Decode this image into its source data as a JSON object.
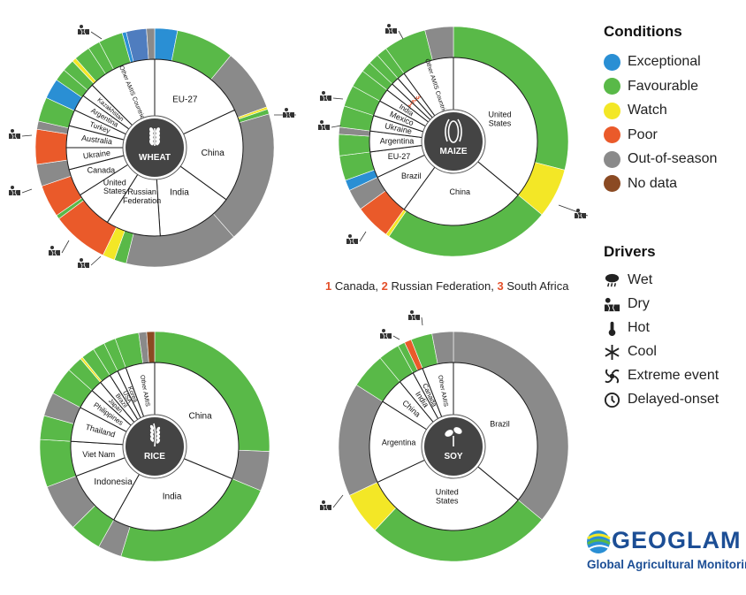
{
  "colors": {
    "Exceptional": "#2a8fd4",
    "Favourable": "#59b948",
    "Watch": "#f3e726",
    "Poor": "#ea5a2a",
    "Out-of-season": "#8a8a8a",
    "No data": "#8b4a23",
    "Mixed": "#4f7dbf"
  },
  "legend": {
    "conditions_title": "Conditions",
    "conditions": [
      {
        "label": "Exceptional",
        "color": "#2a8fd4"
      },
      {
        "label": "Favourable",
        "color": "#59b948"
      },
      {
        "label": "Watch",
        "color": "#f3e726"
      },
      {
        "label": "Poor",
        "color": "#ea5a2a"
      },
      {
        "label": "Out-of-season",
        "color": "#8a8a8a"
      },
      {
        "label": "No data",
        "color": "#8b4a23"
      }
    ],
    "drivers_title": "Drivers",
    "drivers": [
      {
        "label": "Wet",
        "icon": "wet-icon"
      },
      {
        "label": "Dry",
        "icon": "dry-icon"
      },
      {
        "label": "Hot",
        "icon": "hot-icon"
      },
      {
        "label": "Cool",
        "icon": "cool-icon"
      },
      {
        "label": "Extreme event",
        "icon": "extreme-event-icon"
      },
      {
        "label": "Delayed-onset",
        "icon": "delayed-onset-icon"
      }
    ]
  },
  "footnote": {
    "n1": "1",
    "t1": "Canada,",
    "n2": "2",
    "t2": "Russian Federation,",
    "n3": "3",
    "t3": "South Africa"
  },
  "logo": {
    "word": "GEOGLAM",
    "subtitle": "Global Agricultural Monitoring"
  },
  "chart_data": [
    {
      "type": "pie",
      "crop": "WHEAT",
      "inner": [
        {
          "label": "EU-27",
          "value": 18
        },
        {
          "label": "China",
          "value": 17
        },
        {
          "label": "India",
          "value": 14
        },
        {
          "label": "Russian Federation",
          "value": 10
        },
        {
          "label": "United States",
          "value": 7
        },
        {
          "label": "Canada",
          "value": 5
        },
        {
          "label": "Ukraine",
          "value": 4
        },
        {
          "label": "Australia",
          "value": 4
        },
        {
          "label": "Turkey",
          "value": 3
        },
        {
          "label": "Argentina",
          "value": 3
        },
        {
          "label": "Kazakhstan",
          "value": 2.5
        },
        {
          "label": "Other AMIS Countries",
          "value": 12.5
        }
      ],
      "outer": [
        {
          "value": 2.8,
          "condition": "Exceptional"
        },
        {
          "value": 7.2,
          "condition": "Favourable"
        },
        {
          "value": 7.7,
          "condition": "Out-of-season"
        },
        {
          "value": 0.3,
          "condition": "Watch"
        },
        {
          "value": 0.6,
          "condition": "Favourable"
        },
        {
          "value": 16.4,
          "condition": "Out-of-season"
        },
        {
          "value": 14,
          "condition": "Out-of-season"
        },
        {
          "value": 1.5,
          "condition": "Favourable"
        },
        {
          "value": 1.5,
          "condition": "Watch"
        },
        {
          "value": 7,
          "condition": "Poor"
        },
        {
          "value": 0.5,
          "condition": "Favourable"
        },
        {
          "value": 4,
          "condition": "Poor"
        },
        {
          "value": 2.7,
          "condition": "Out-of-season"
        },
        {
          "value": 4.3,
          "condition": "Poor"
        },
        {
          "value": 1,
          "condition": "Out-of-season"
        },
        {
          "value": 3,
          "condition": "Favourable"
        },
        {
          "value": 2.5,
          "condition": "Exceptional"
        },
        {
          "value": 1.5,
          "condition": "Favourable"
        },
        {
          "value": 1.5,
          "condition": "Favourable"
        },
        {
          "value": 0.5,
          "condition": "Watch"
        },
        {
          "value": 2,
          "condition": "Favourable"
        },
        {
          "value": 1.5,
          "condition": "Favourable"
        },
        {
          "value": 3,
          "condition": "Favourable"
        },
        {
          "value": 0.5,
          "condition": "Exceptional"
        },
        {
          "value": 2.5,
          "condition": "Mixed"
        },
        {
          "value": 1,
          "condition": "Out-of-season"
        }
      ]
    },
    {
      "type": "pie",
      "crop": "MAIZE",
      "inner": [
        {
          "label": "United States",
          "value": 36
        },
        {
          "label": "China",
          "value": 24
        },
        {
          "label": "Brazil",
          "value": 8
        },
        {
          "label": "EU-27",
          "value": 5
        },
        {
          "label": "Argentina",
          "value": 4
        },
        {
          "label": "Ukraine",
          "value": 3
        },
        {
          "label": "Mexico",
          "value": 3
        },
        {
          "label": "India",
          "value": 2.5
        },
        {
          "label": "1",
          "value": 1.5
        },
        {
          "label": "2",
          "value": 1.5
        },
        {
          "label": "3",
          "value": 1.5
        },
        {
          "label": "Other AMIS Countries",
          "value": 10
        }
      ],
      "outer": [
        {
          "value": 29,
          "condition": "Favourable"
        },
        {
          "value": 7,
          "condition": "Watch"
        },
        {
          "value": 23.5,
          "condition": "Favourable"
        },
        {
          "value": 0.5,
          "condition": "Watch"
        },
        {
          "value": 5,
          "condition": "Poor"
        },
        {
          "value": 3,
          "condition": "Out-of-season"
        },
        {
          "value": 1.5,
          "condition": "Exceptional"
        },
        {
          "value": 3.5,
          "condition": "Favourable"
        },
        {
          "value": 3,
          "condition": "Favourable"
        },
        {
          "value": 1,
          "condition": "Out-of-season"
        },
        {
          "value": 3,
          "condition": "Favourable"
        },
        {
          "value": 3,
          "condition": "Favourable"
        },
        {
          "value": 2.5,
          "condition": "Favourable"
        },
        {
          "value": 1.5,
          "condition": "Favourable"
        },
        {
          "value": 1.5,
          "condition": "Favourable"
        },
        {
          "value": 1.5,
          "condition": "Favourable"
        },
        {
          "value": 6,
          "condition": "Favourable"
        },
        {
          "value": 4,
          "condition": "Out-of-season"
        }
      ]
    },
    {
      "type": "pie",
      "crop": "RICE",
      "inner": [
        {
          "label": "China",
          "value": 28
        },
        {
          "label": "India",
          "value": 24
        },
        {
          "label": "Indonesia",
          "value": 10
        },
        {
          "label": "Viet Nam",
          "value": 6
        },
        {
          "label": "Thailand",
          "value": 6
        },
        {
          "label": "Philippines",
          "value": 3.5
        },
        {
          "label": "Japan",
          "value": 2
        },
        {
          "label": "Brazil",
          "value": 2
        },
        {
          "label": "USA",
          "value": 1.5
        },
        {
          "label": "Korea",
          "value": 1.5
        },
        {
          "label": "Other AMIS",
          "value": 5
        }
      ],
      "outer": [
        {
          "value": 23,
          "condition": "Favourable"
        },
        {
          "value": 5,
          "condition": "Out-of-season"
        },
        {
          "value": 21,
          "condition": "Favourable"
        },
        {
          "value": 3,
          "condition": "Out-of-season"
        },
        {
          "value": 4,
          "condition": "Favourable"
        },
        {
          "value": 6,
          "condition": "Out-of-season"
        },
        {
          "value": 6,
          "condition": "Favourable"
        },
        {
          "value": 3,
          "condition": "Favourable"
        },
        {
          "value": 3,
          "condition": "Out-of-season"
        },
        {
          "value": 3.5,
          "condition": "Favourable"
        },
        {
          "value": 2,
          "condition": "Favourable"
        },
        {
          "value": 0.3,
          "condition": "Watch"
        },
        {
          "value": 1.7,
          "condition": "Favourable"
        },
        {
          "value": 1.5,
          "condition": "Favourable"
        },
        {
          "value": 1.5,
          "condition": "Favourable"
        },
        {
          "value": 3,
          "condition": "Favourable"
        },
        {
          "value": 1,
          "condition": "Out-of-season"
        },
        {
          "value": 1,
          "condition": "No data"
        }
      ]
    },
    {
      "type": "pie",
      "crop": "SOY",
      "inner": [
        {
          "label": "Brazil",
          "value": 36
        },
        {
          "label": "United States",
          "value": 32
        },
        {
          "label": "Argentina",
          "value": 16
        },
        {
          "label": "China",
          "value": 5
        },
        {
          "label": "India",
          "value": 3
        },
        {
          "label": "Canada",
          "value": 2
        },
        {
          "label": "Other AMIS",
          "value": 6
        }
      ],
      "outer": [
        {
          "value": 36,
          "condition": "Out-of-season"
        },
        {
          "value": 26,
          "condition": "Favourable"
        },
        {
          "value": 6,
          "condition": "Watch"
        },
        {
          "value": 16,
          "condition": "Out-of-season"
        },
        {
          "value": 5,
          "condition": "Favourable"
        },
        {
          "value": 3,
          "condition": "Favourable"
        },
        {
          "value": 1,
          "condition": "Favourable"
        },
        {
          "value": 1,
          "condition": "Poor"
        },
        {
          "value": 3,
          "condition": "Favourable"
        },
        {
          "value": 3,
          "condition": "Out-of-season"
        }
      ]
    }
  ]
}
